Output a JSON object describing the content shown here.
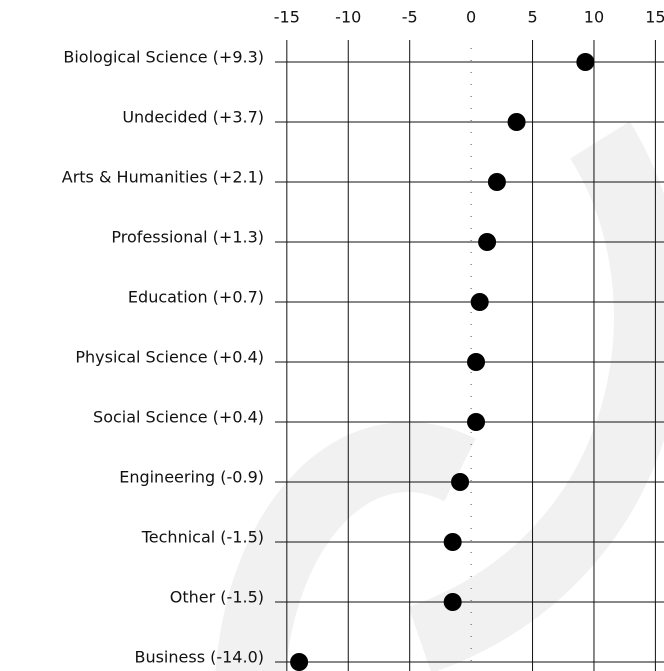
{
  "chart_data": {
    "type": "dot",
    "categories": [
      "Biological Science (+9.3)",
      "Undecided (+3.7)",
      "Arts & Humanities (+2.1)",
      "Professional (+1.3)",
      "Education (+0.7)",
      "Physical Science (+0.4)",
      "Social Science (+0.4)",
      "Engineering (-0.9)",
      "Technical (-1.5)",
      "Other (-1.5)",
      "Business (-14.0)"
    ],
    "values": [
      9.3,
      3.7,
      2.1,
      1.3,
      0.7,
      0.4,
      0.4,
      -0.9,
      -1.5,
      -1.5,
      -14.0
    ],
    "color": "#000000",
    "xlim": [
      -15.8,
      15.7
    ],
    "xticks": [
      -15,
      -10,
      -5,
      0,
      5,
      10,
      15
    ],
    "grid": true
  }
}
